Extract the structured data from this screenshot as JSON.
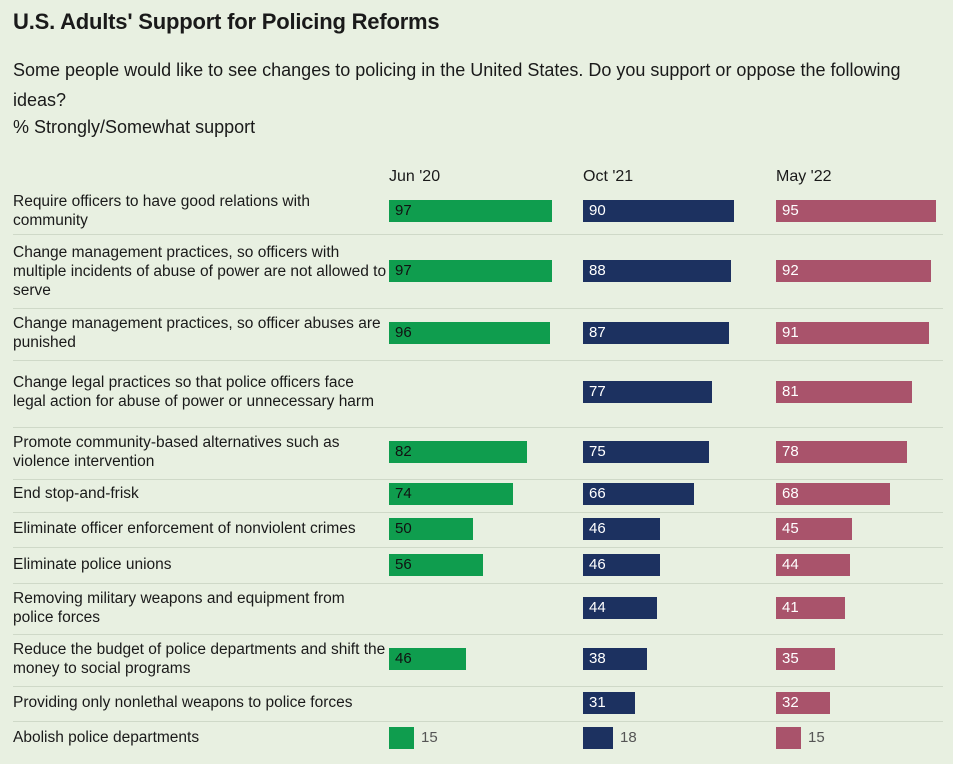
{
  "header": {
    "title": "U.S. Adults' Support for Policing Reforms",
    "subtitle": "Some people would like to see changes to policing in the United States. Do you support or oppose the following ideas?",
    "measure": "% Strongly/Somewhat support"
  },
  "colors": {
    "jun20": "#0f9d4e",
    "oct21": "#1c3160",
    "may22": "#a9536b",
    "background": "#e8f0e1"
  },
  "chart_data": {
    "type": "bar",
    "title": "U.S. Adults' Support for Policing Reforms",
    "xlim": [
      0,
      100
    ],
    "series": [
      {
        "name": "Jun '20",
        "values": [
          97,
          97,
          96,
          null,
          82,
          74,
          50,
          56,
          null,
          46,
          null,
          15
        ]
      },
      {
        "name": "Oct '21",
        "values": [
          90,
          88,
          87,
          77,
          75,
          66,
          46,
          46,
          44,
          38,
          31,
          18
        ]
      },
      {
        "name": "May '22",
        "values": [
          95,
          92,
          91,
          81,
          78,
          68,
          45,
          44,
          41,
          35,
          32,
          15
        ]
      }
    ],
    "categories": [
      "Require officers to have good relations with community",
      "Change management practices, so officers with multiple incidents of abuse of power are not allowed to serve",
      "Change management practices, so officer abuses are punished",
      "Change legal practices so that police officers face legal action for abuse of power or unnecessary harm",
      "Promote community-based alternatives such as violence intervention",
      "End stop-and-frisk",
      "Eliminate officer enforcement of nonviolent crimes",
      "Eliminate police unions",
      "Removing military weapons and equipment from police forces",
      "Reduce the budget of police departments and shift the money to social programs",
      "Providing only nonlethal weapons to police forces",
      "Abolish police departments"
    ]
  }
}
